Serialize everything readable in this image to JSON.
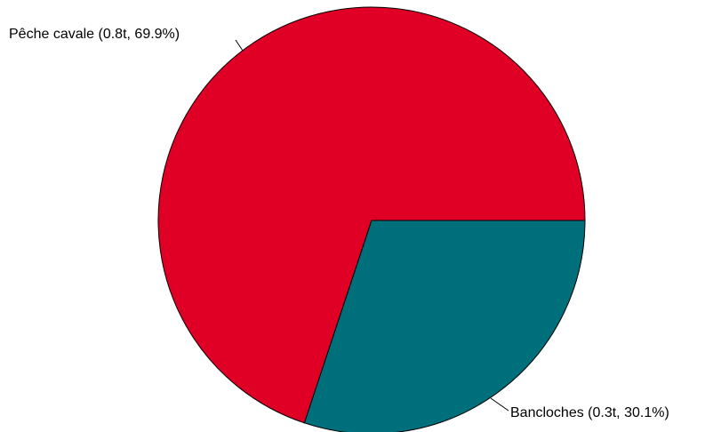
{
  "chart_data": {
    "type": "pie",
    "title": "",
    "start": "right",
    "direction": "counterclockwise",
    "slices": [
      {
        "label": "Pêche cavale (0.8t, 69.9%)",
        "category": "Pêche cavale",
        "value": 0.8,
        "percent": 69.9,
        "color": "#e00026"
      },
      {
        "label": "Bancloches (0.3t, 30.1%)",
        "category": "Bancloches",
        "value": 0.3,
        "percent": 30.1,
        "color": "#006f7c"
      }
    ],
    "legend": "none"
  }
}
